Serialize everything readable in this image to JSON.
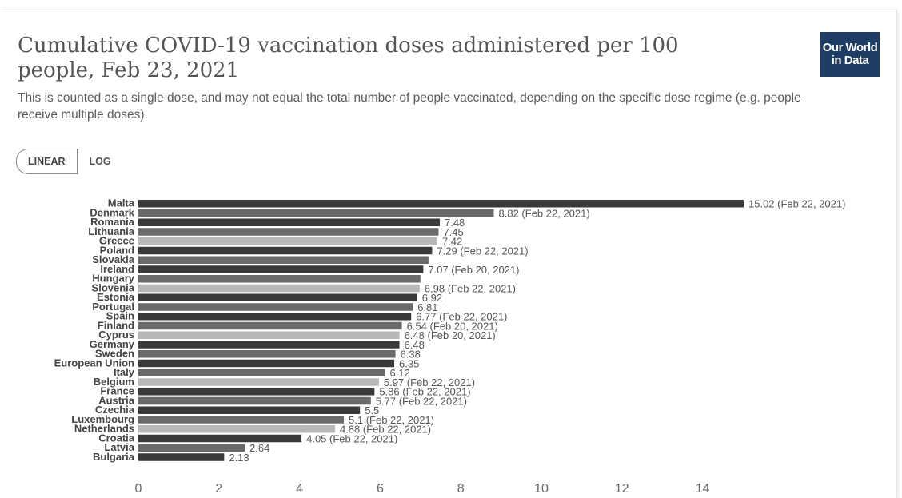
{
  "header": {
    "title": "Cumulative COVID-19 vaccination doses administered per 100 people, Feb 23, 2021",
    "subtitle": "This is counted as a single dose, and may not equal the total number of people vaccinated, depending on the specific dose regime (e.g. people receive multiple doses).",
    "logo_line1": "Our World",
    "logo_line2": "in Data"
  },
  "controls": {
    "linear_label": "LINEAR",
    "log_label": "LOG",
    "active": "linear"
  },
  "colors": {
    "bar_dark": "#3a3a3a",
    "bar_mid": "#6a6a6a",
    "bar_light": "#b8b8b8",
    "logo_bg": "#1d3d63"
  },
  "chart_data": {
    "type": "bar",
    "orientation": "horizontal",
    "categories": [
      "Malta",
      "Denmark",
      "Romania",
      "Lithuania",
      "Greece",
      "Poland",
      "Slovakia",
      "Ireland",
      "Hungary",
      "Slovenia",
      "Estonia",
      "Portugal",
      "Spain",
      "Finland",
      "Cyprus",
      "Germany",
      "Sweden",
      "European Union",
      "Italy",
      "Belgium",
      "France",
      "Austria",
      "Czechia",
      "Luxembourg",
      "Netherlands",
      "Croatia",
      "Latvia",
      "Bulgaria"
    ],
    "values": [
      15.02,
      8.82,
      7.48,
      7.45,
      7.42,
      7.29,
      7.2,
      7.07,
      7.0,
      6.98,
      6.92,
      6.81,
      6.77,
      6.54,
      6.48,
      6.48,
      6.38,
      6.35,
      6.12,
      5.97,
      5.86,
      5.77,
      5.5,
      5.1,
      4.88,
      4.05,
      2.64,
      2.13
    ],
    "value_labels": [
      "15.02 (Feb 22, 2021)",
      "8.82 (Feb 22, 2021)",
      "7.48",
      "7.45",
      "7.42",
      "7.29 (Feb 22, 2021)",
      "",
      "7.07 (Feb 20, 2021)",
      "",
      "6.98 (Feb 22, 2021)",
      "6.92",
      "6.81",
      "6.77 (Feb 22, 2021)",
      "6.54 (Feb 20, 2021)",
      "6.48 (Feb 20, 2021)",
      "6.48",
      "6.38",
      "6.35",
      "6.12",
      "5.97 (Feb 22, 2021)",
      "5.86 (Feb 22, 2021)",
      "5.77 (Feb 22, 2021)",
      "5.5",
      "5.1 (Feb 22, 2021)",
      "4.88 (Feb 22, 2021)",
      "4.05 (Feb 22, 2021)",
      "2.64",
      "2.13"
    ],
    "xlim": [
      0,
      15
    ],
    "xticks": [
      0,
      2,
      4,
      6,
      8,
      10,
      12,
      14
    ],
    "grid": false,
    "legend": "none"
  }
}
